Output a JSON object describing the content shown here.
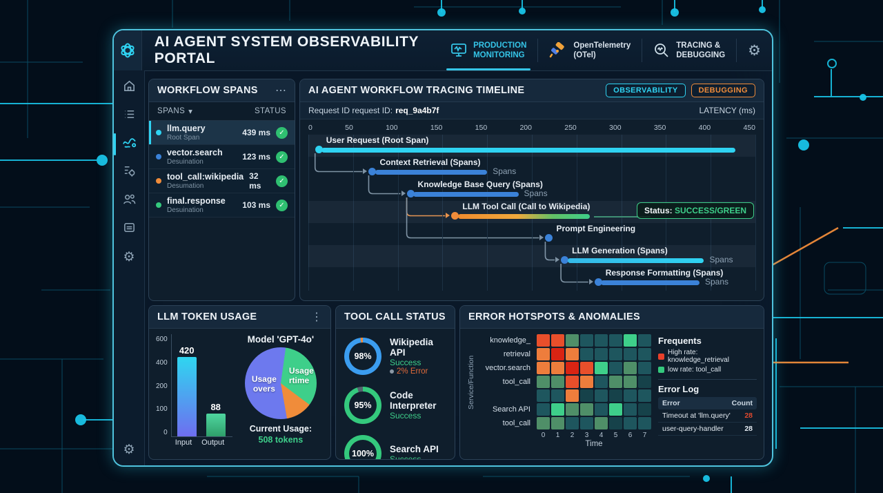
{
  "window": {
    "title": "AI AGENT SYSTEM OBSERVABILITY PORTAL"
  },
  "header": {
    "nav": [
      {
        "line1": "PRODUCTION",
        "line2": "MONITORING",
        "icon": "monitor-pulse-icon",
        "active": true
      },
      {
        "line1": "OpenTelemetry",
        "line2": "(OTel)",
        "icon": "telescope-icon",
        "active": false
      },
      {
        "line1": "TRACING &",
        "line2": "DEBUGGING",
        "icon": "magnifier-pulse-icon",
        "active": false
      }
    ],
    "gear": "⚙"
  },
  "sidebar": {
    "items": [
      {
        "icon": "home-icon",
        "active": false
      },
      {
        "icon": "list-icon",
        "active": false
      },
      {
        "icon": "workflow-trace-icon",
        "active": true
      },
      {
        "icon": "metrics-tune-icon",
        "active": false
      },
      {
        "icon": "users-icon",
        "active": false
      },
      {
        "icon": "logs-card-icon",
        "active": false
      },
      {
        "icon": "gear-icon",
        "active": false
      }
    ],
    "bottom_icon": "gear-icon"
  },
  "workflow_spans": {
    "title": "WORKFLOW SPANS",
    "menu": "⋯",
    "col_spans": "SPANS",
    "col_caret": "▾",
    "col_status": "STATUS",
    "check_glyph": "✓",
    "rows": [
      {
        "dot_color": "#2fd3f2",
        "name": "llm.query",
        "sub": "Root Span",
        "latency": "439 ms",
        "status": "success",
        "active": true
      },
      {
        "dot_color": "#3b82d8",
        "name": "vector.search",
        "sub": "Desuination",
        "latency": "123 ms",
        "status": "success",
        "active": false
      },
      {
        "dot_color": "#f08c3a",
        "name": "tool_call:wikipedia",
        "sub": "Desumation",
        "latency": "32 ms",
        "status": "success",
        "active": false
      },
      {
        "dot_color": "#34c97d",
        "name": "final.response",
        "sub": "Desuination",
        "latency": "103 ms",
        "status": "success",
        "active": false
      }
    ]
  },
  "timeline": {
    "title": "AI AGENT WORKFLOW TRACING TIMELINE",
    "badges": [
      {
        "label": "OBSERVABILITY",
        "color": "#2fd3f2"
      },
      {
        "label": "DEBUGGING",
        "color": "#f08c3a"
      }
    ],
    "request_id_label": "Request ID request ID:",
    "request_id_value": "req_9a4b7f",
    "latency_label": "LATENCY (ms)",
    "axis_ticks": [
      "0",
      "50",
      "100",
      "150",
      "150",
      "200",
      "250",
      "300",
      "350",
      "400",
      "450"
    ],
    "rows": [
      {
        "label": "User Request (Root Span)",
        "dot": 1.5,
        "bar_start": 3,
        "bar_end": 95.5,
        "bar_color": "cyan",
        "band": true,
        "parent": null
      },
      {
        "label": "Context Retrieval (Spans)",
        "dot": 13.5,
        "bar_start": 15,
        "bar_end": 40,
        "bar_color": "blue",
        "tag": "Spans",
        "parent": 0
      },
      {
        "label": "Knowledge Base Query (Spans)",
        "dot": 22,
        "bar_start": 23.5,
        "bar_end": 47,
        "bar_color": "blue",
        "tag": "Spans",
        "parent": 1
      },
      {
        "label": "LLM Tool Call (Call to Wikipedia)",
        "dot": 32,
        "bar_start": 33.5,
        "bar_end": 63,
        "bar_color": "orange-green",
        "band": true,
        "parent": 2,
        "status_prefix": "Status: ",
        "status_value": "SUCCESS/GREEN"
      },
      {
        "label": "Prompt Engineering",
        "dot": 53,
        "parent": 2
      },
      {
        "label": "LLM Generation (Spans)",
        "dot": 56.5,
        "bar_start": 58,
        "bar_end": 88.5,
        "bar_color": "lightblue",
        "tag": "Spans",
        "band": true,
        "parent": 4
      },
      {
        "label": "Response Formatting (Spans)",
        "dot": 64,
        "bar_start": 65.5,
        "bar_end": 87.5,
        "bar_color": "blue",
        "tag": "Spans",
        "parent": 5
      }
    ]
  },
  "token_usage": {
    "title": "LLM TOKEN USAGE",
    "menu": "⋮",
    "chart_data": {
      "type": "bar",
      "categories": [
        "Input",
        "Output"
      ],
      "values": [
        420,
        88
      ],
      "yticks": [
        600,
        400,
        200,
        100,
        0
      ],
      "ylim": [
        0,
        600
      ],
      "bar_colors": [
        [
          "#2fd6f0",
          "#6e6ef0"
        ],
        [
          "#4fd6a0",
          "#2f9f6a"
        ]
      ]
    },
    "model_label": "Model 'GPT-4o'",
    "pie_chart": {
      "type": "pie",
      "start_deg": 8,
      "slices": [
        {
          "label": "Usage rtime",
          "pct": 33,
          "color": "#3ecf8a"
        },
        {
          "label": "",
          "pct": 12,
          "color": "#f08c3a"
        },
        {
          "label": "Usage overs",
          "pct": 55,
          "color": "#6d79ee"
        }
      ]
    },
    "pie_labels": {
      "left1": "Usage",
      "left2": "overs",
      "right1": "Usage",
      "right2": "rtime"
    },
    "current_usage_label": "Current Usage:",
    "current_usage_value": "508 tokens"
  },
  "tool_calls": {
    "title": "TOOL CALL STATUS",
    "items": [
      {
        "pct": "98%",
        "pct_num": 98,
        "ring_color": "#3b9df0",
        "notch_color": "#f08c3a",
        "name": "Wikipedia API",
        "status": "Success",
        "error": "2% Error"
      },
      {
        "pct": "95%",
        "pct_num": 95,
        "ring_color": "#34c97d",
        "notch_color": "#55616e",
        "name": "Code Interpreter",
        "status": "Success",
        "error": ""
      },
      {
        "pct": "100%",
        "pct_num": 100,
        "ring_color": "#34c97d",
        "notch_color": "#34c97d",
        "name": "Search API",
        "status": "Success",
        "error": ""
      }
    ]
  },
  "error_hotspots": {
    "title": "ERROR HOTSPOTS & ANOMALIES",
    "ylabel": "Service/Function",
    "xlabel": "Time",
    "row_labels": [
      "knowledge_",
      "retrieval",
      "vector.search",
      "tool_call",
      "",
      "Search API",
      "tool_call"
    ],
    "x_ticks": [
      "0",
      "1",
      "2",
      "3",
      "4",
      "5",
      "6",
      "7"
    ],
    "palette": {
      "R": "#d92413",
      "O": "#e84f2b",
      "o": "#ee7d3c",
      "G": "#3ecf8a",
      "g": "#4f8f68",
      "T": "#1e565e",
      "t": "#16424a"
    },
    "grid": [
      [
        "O",
        "O",
        "g",
        "T",
        "T",
        "T",
        "G",
        "T"
      ],
      [
        "o",
        "R",
        "o",
        "T",
        "T",
        "T",
        "T",
        "T"
      ],
      [
        "o",
        "o",
        "R",
        "O",
        "G",
        "T",
        "g",
        "T"
      ],
      [
        "g",
        "g",
        "O",
        "o",
        "T",
        "g",
        "g",
        "t"
      ],
      [
        "T",
        "T",
        "o",
        "t",
        "T",
        "t",
        "T",
        "T"
      ],
      [
        "T",
        "G",
        "g",
        "g",
        "T",
        "G",
        "T",
        "t"
      ],
      [
        "g",
        "g",
        "T",
        "T",
        "g",
        "t",
        "T",
        "T"
      ]
    ],
    "legend": {
      "title": "Frequents",
      "items": [
        {
          "color": "#e8402a",
          "label": "High rate: knowledge_retrieval"
        },
        {
          "color": "#34c97d",
          "label": "low rate: tool_call"
        }
      ]
    },
    "error_log": {
      "title": "Error Log",
      "col_error": "Error",
      "col_count": "Count",
      "rows": [
        {
          "error": "Timeout at 'llm.query'",
          "count": "28",
          "highlight": true
        },
        {
          "error": "user-query-handler",
          "count": "28",
          "highlight": false
        }
      ]
    }
  }
}
